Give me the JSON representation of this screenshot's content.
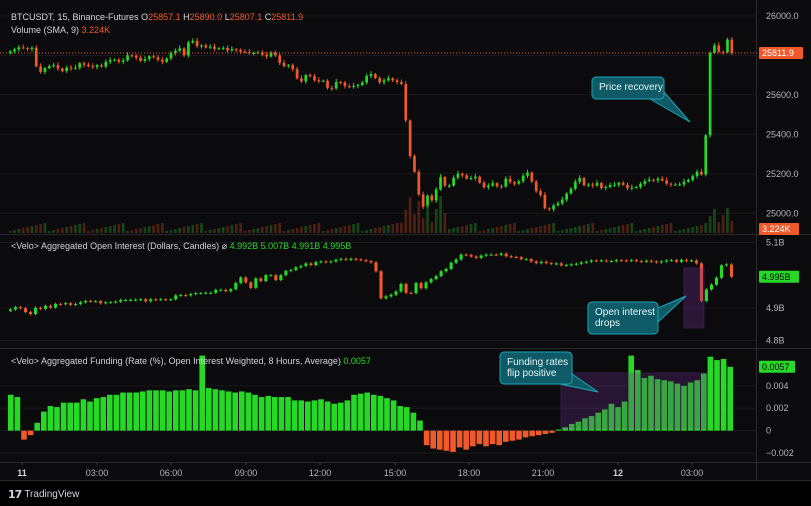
{
  "app": {
    "brand": "TradingView",
    "logo_icon": "tradingview-logo-icon"
  },
  "colors": {
    "bg": "#0b0b0d",
    "up": "#26d926",
    "down": "#f0592a",
    "grid": "#1b1b1f",
    "callout_bg": "#0e5a66",
    "callout_border": "#1aa7b8",
    "box": "#6b2e8a"
  },
  "price_pane": {
    "line1": {
      "symbol": "BTCUSDT, 15, Binance-Futures",
      "o_label": "O",
      "o": "25857.1",
      "h_label": "H",
      "h": "25890.0",
      "l_label": "L",
      "l": "25807.1",
      "c_label": "C",
      "c": "25811.9"
    },
    "line2": {
      "label": "Volume (SMA, 9)",
      "value": "3.224K"
    },
    "last_price_tag": "25811.9",
    "volume_tag": "3.224K"
  },
  "oi_pane": {
    "label": "<Velo> Aggregated Open Interest (Dollars, Candles)",
    "icon": "no-visibility-icon",
    "o": "4.992B",
    "h": "5.007B",
    "l": "4.991B",
    "c": "4.995B",
    "last_tag": "4.995B"
  },
  "funding_pane": {
    "label": "<Velo> Aggregated Funding (Rate (%), Open Interest Weighted, 8 Hours, Average)",
    "value": "0.0057",
    "last_tag": "0.0057"
  },
  "callouts": {
    "price": "Price recovery",
    "oi": [
      "Open interest",
      "drops"
    ],
    "funding": [
      "Funding rates",
      "flip positive"
    ]
  },
  "chart_data": [
    {
      "type": "candlestick",
      "title": "BTCUSDT, 15, Binance-Futures",
      "interval": "15m",
      "x_ticks": [
        "11",
        "03:00",
        "06:00",
        "09:00",
        "12:00",
        "15:00",
        "18:00",
        "21:00",
        "12",
        "03:00"
      ],
      "y_ticks": [
        "26000.0",
        "25800.0",
        "25600.0",
        "25400.0",
        "25200.0",
        "25000.0"
      ],
      "ylim": [
        24900,
        26060
      ],
      "series_close": [
        25820,
        25830,
        25840,
        25836,
        25832,
        25838,
        25744,
        25716,
        25735,
        25745,
        25750,
        25733,
        25720,
        25738,
        25733,
        25737,
        25760,
        25752,
        25745,
        25740,
        25750,
        25743,
        25767,
        25775,
        25778,
        25767,
        25774,
        25800,
        25798,
        25788,
        25772,
        25781,
        25795,
        25790,
        25777,
        25767,
        25784,
        25812,
        25823,
        25835,
        25800,
        25865,
        25873,
        25847,
        25850,
        25840,
        25844,
        25833,
        25836,
        25838,
        25825,
        25831,
        25826,
        25818,
        25816,
        25812,
        25812,
        25815,
        25803,
        25794,
        25815,
        25800,
        25762,
        25745,
        25750,
        25730,
        25683,
        25668,
        25700,
        25694,
        25674,
        25670,
        25671,
        25635,
        25632,
        25665,
        25662,
        25644,
        25640,
        25645,
        25650,
        25662,
        25695,
        25705,
        25685,
        25663,
        25673,
        25683,
        25673,
        25665,
        25655,
        25470,
        25290,
        25210,
        25095,
        25033,
        25090,
        25065,
        25120,
        25183,
        25140,
        25140,
        25180,
        25200,
        25192,
        25176,
        25178,
        25185,
        25155,
        25132,
        25140,
        25152,
        25137,
        25135,
        25175,
        25158,
        25150,
        25162,
        25190,
        25206,
        25160,
        25112,
        25093,
        25025,
        25020,
        25040,
        25050,
        25069,
        25100,
        25124,
        25160,
        25178,
        25142,
        25145,
        25140,
        25153,
        25128,
        25133,
        25143,
        25144,
        25154,
        25144,
        25127,
        25130,
        25133,
        25149,
        25163,
        25170,
        25166,
        25175,
        25166,
        25150,
        25145,
        25146,
        25146,
        25160,
        25169,
        25188,
        25210,
        25196,
        25395,
        25812,
        25850,
        25818,
        25816,
        25880,
        25811.9
      ],
      "volume_tag": "3.224K"
    },
    {
      "type": "candlestick",
      "title": "<Velo> Aggregated Open Interest (Dollars, Candles)",
      "unit": "B USD",
      "y_ticks": [
        "5.1B",
        "4.9B",
        "4.8B"
      ],
      "ylim": [
        4.78,
        5.12
      ],
      "series_close": [
        4.895,
        4.902,
        4.899,
        4.887,
        4.881,
        4.9,
        4.897,
        4.906,
        4.901,
        4.912,
        4.911,
        4.914,
        4.909,
        4.912,
        4.917,
        4.921,
        4.92,
        4.92,
        4.914,
        4.917,
        4.917,
        4.919,
        4.924,
        4.924,
        4.924,
        4.925,
        4.926,
        4.92,
        4.926,
        4.925,
        4.926,
        4.925,
        4.926,
        4.938,
        4.939,
        4.938,
        4.942,
        4.945,
        4.945,
        4.946,
        4.946,
        4.955,
        4.955,
        4.951,
        4.957,
        4.976,
        4.993,
        4.978,
        4.961,
        4.99,
        4.982,
        5.0,
        5.0,
        4.985,
        5.0,
        5.013,
        5.016,
        5.024,
        5.028,
        5.036,
        5.031,
        5.04,
        5.042,
        5.04,
        5.042,
        5.047,
        5.05,
        5.047,
        5.05,
        5.048,
        5.046,
        5.043,
        5.039,
        5.012,
        4.929,
        4.935,
        4.94,
        4.95,
        4.973,
        4.946,
        4.945,
        4.976,
        4.96,
        4.978,
        4.988,
        4.997,
        5.012,
        5.019,
        5.038,
        5.048,
        5.063,
        5.062,
        5.057,
        5.053,
        5.06,
        5.063,
        5.063,
        5.062,
        5.066,
        5.058,
        5.056,
        5.055,
        5.049,
        5.049,
        5.042,
        5.037,
        5.041,
        5.037,
        5.034,
        5.036,
        5.03,
        5.031,
        5.033,
        5.035,
        5.039,
        5.041,
        5.045,
        5.044,
        5.045,
        5.043,
        5.043,
        5.046,
        5.045,
        5.044,
        5.046,
        5.043,
        5.042,
        5.044,
        5.042,
        5.039,
        5.042,
        5.045,
        5.046,
        5.041,
        5.047,
        5.044,
        5.045,
        5.036,
        4.921,
        4.956,
        4.971,
        4.992,
        5.03,
        5.033,
        4.995
      ]
    },
    {
      "type": "histogram",
      "title": "<Velo> Aggregated Funding (Rate (%), Open Interest Weighted, 8 Hours, Average)",
      "y_ticks": [
        "0.004",
        "0.002",
        "0",
        "−0.002"
      ],
      "ylim": [
        -0.0028,
        0.0072
      ],
      "values": [
        0.0032,
        0.003,
        -0.0008,
        -0.0004,
        0.0007,
        0.0017,
        0.0022,
        0.0021,
        0.0025,
        0.0025,
        0.0025,
        0.0028,
        0.0026,
        0.0029,
        0.003,
        0.0032,
        0.0032,
        0.0034,
        0.0034,
        0.0034,
        0.0035,
        0.0036,
        0.0036,
        0.0036,
        0.0035,
        0.0036,
        0.0036,
        0.0037,
        0.0036,
        0.0067,
        0.0038,
        0.0037,
        0.0036,
        0.0035,
        0.0034,
        0.0035,
        0.0034,
        0.0032,
        0.003,
        0.0031,
        0.003,
        0.003,
        0.003,
        0.0027,
        0.0027,
        0.0026,
        0.0027,
        0.0028,
        0.0026,
        0.0024,
        0.0025,
        0.0027,
        0.0032,
        0.0033,
        0.0034,
        0.0032,
        0.0031,
        0.0029,
        0.0027,
        0.0022,
        0.0021,
        0.0016,
        0.0009,
        -0.0013,
        -0.0016,
        -0.0017,
        -0.0018,
        -0.0019,
        -0.0015,
        -0.0017,
        -0.0014,
        -0.0012,
        -0.0014,
        -0.0012,
        -0.0013,
        -0.001,
        -0.0009,
        -0.0008,
        -0.0006,
        -0.0005,
        -0.0004,
        -0.0003,
        -0.0002,
        0.0001,
        0.0003,
        0.0006,
        0.0008,
        0.0011,
        0.0013,
        0.0016,
        0.0019,
        0.0024,
        0.0021,
        0.0026,
        0.0067,
        0.0054,
        0.0047,
        0.0049,
        0.0046,
        0.0045,
        0.0044,
        0.0042,
        0.004,
        0.0043,
        0.0045,
        0.0051,
        0.0066,
        0.0063,
        0.0064,
        0.0057
      ]
    }
  ]
}
